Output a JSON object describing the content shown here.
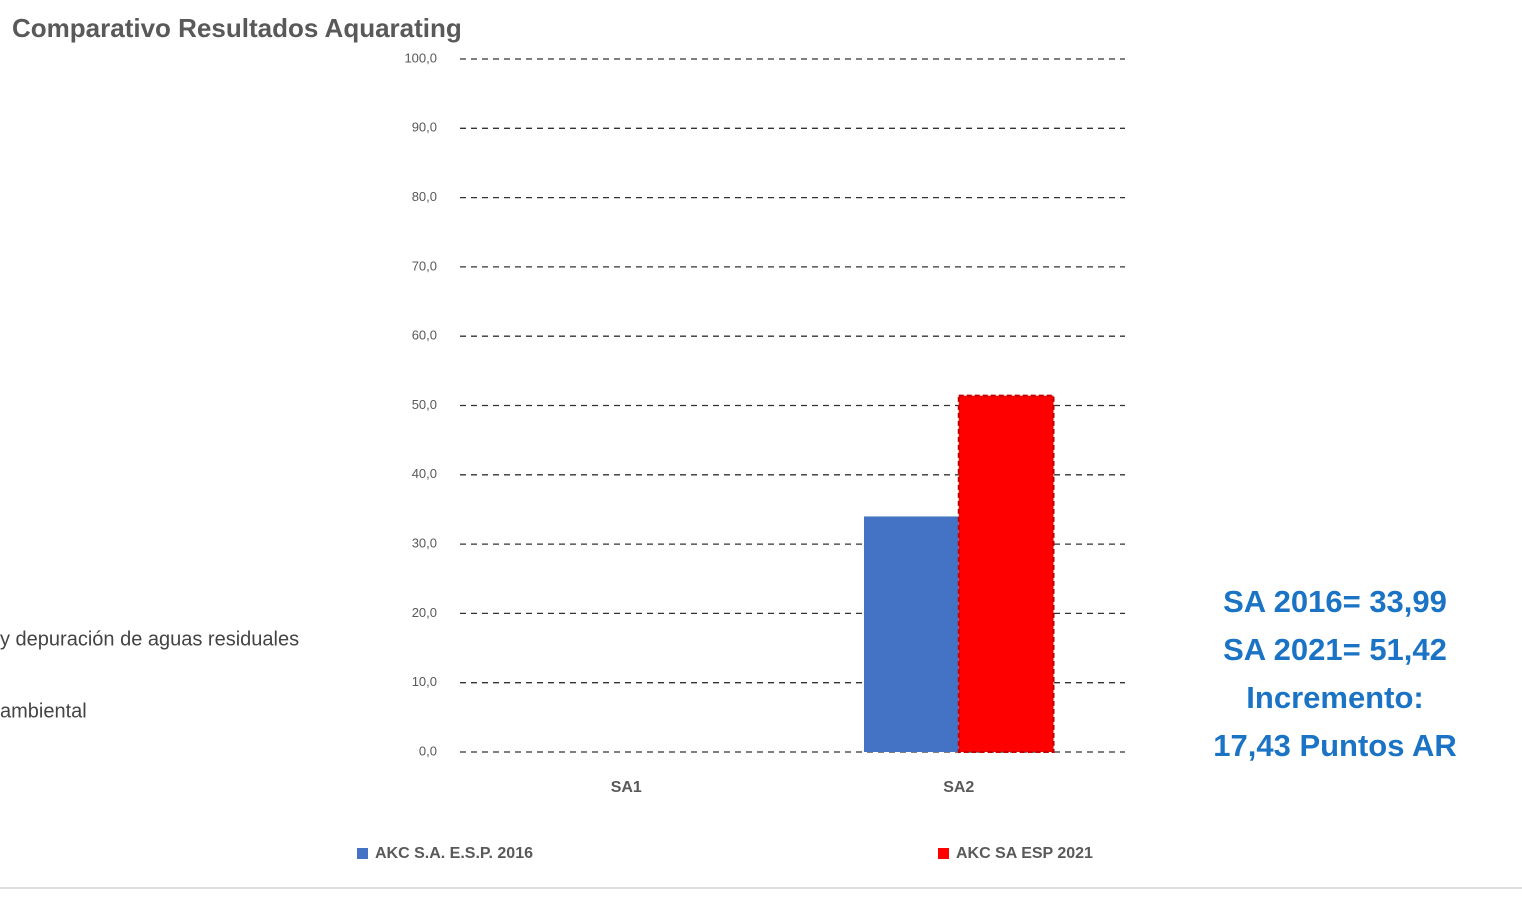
{
  "chart_data": {
    "type": "bar",
    "title": "Comparativo Resultados Aquarating",
    "categories": [
      "SA1",
      "SA2"
    ],
    "series": [
      {
        "name": "AKC S.A. E.S.P. 2016",
        "color": "#4472c4",
        "values": [
          0,
          33.99
        ]
      },
      {
        "name": "AKC SA ESP 2021",
        "color": "#ff0000",
        "values": [
          0,
          51.42
        ]
      }
    ],
    "ylim": [
      0,
      100
    ],
    "yticks": [
      {
        "value": 0,
        "label": "0,0"
      },
      {
        "value": 10,
        "label": "10,0"
      },
      {
        "value": 20,
        "label": "20,0"
      },
      {
        "value": 30,
        "label": "30,0"
      },
      {
        "value": 40,
        "label": "40,0"
      },
      {
        "value": 50,
        "label": "50,0"
      },
      {
        "value": 60,
        "label": "60,0"
      },
      {
        "value": 70,
        "label": "70,0"
      },
      {
        "value": 80,
        "label": "80,0"
      },
      {
        "value": 90,
        "label": "90,0"
      },
      {
        "value": 100,
        "label": "100,0"
      }
    ],
    "grid": true,
    "legend": "bottom",
    "annotations": [
      "SA 2016= 33,99",
      "SA 2021= 51,42",
      "Incremento:",
      "17,43 Puntos AR"
    ],
    "side_texts": [
      "y depuración de aguas residuales",
      "ambiental"
    ]
  }
}
